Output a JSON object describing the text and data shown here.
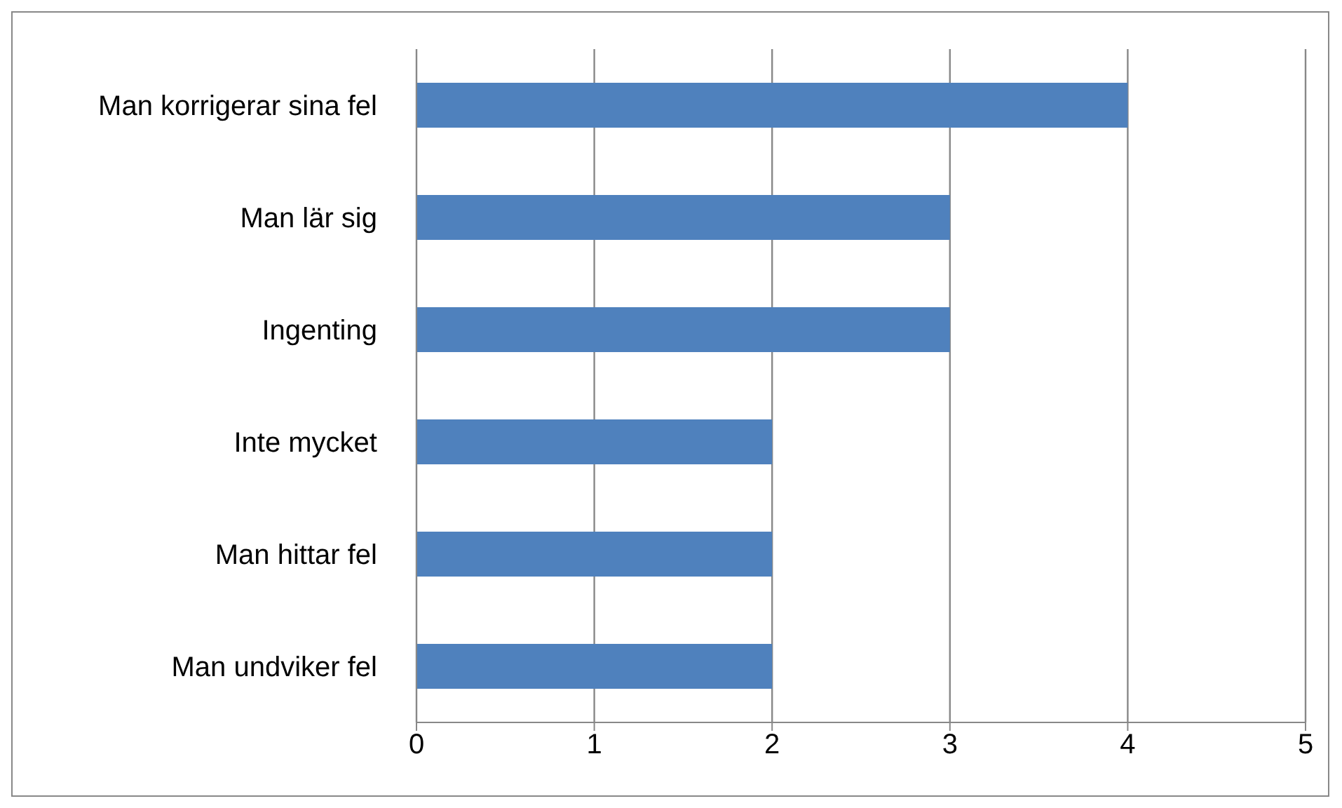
{
  "chart_data": {
    "type": "bar",
    "orientation": "horizontal",
    "categories": [
      "Man korrigerar sina fel",
      "Man lär sig",
      "Ingenting",
      "Inte mycket",
      "Man hittar fel",
      "Man undviker fel"
    ],
    "values": [
      4,
      3,
      3,
      2,
      2,
      2
    ],
    "color": "#4f81bd",
    "xlim": [
      0,
      5
    ],
    "xticks": [
      0,
      1,
      2,
      3,
      4,
      5
    ],
    "grid": "x"
  }
}
